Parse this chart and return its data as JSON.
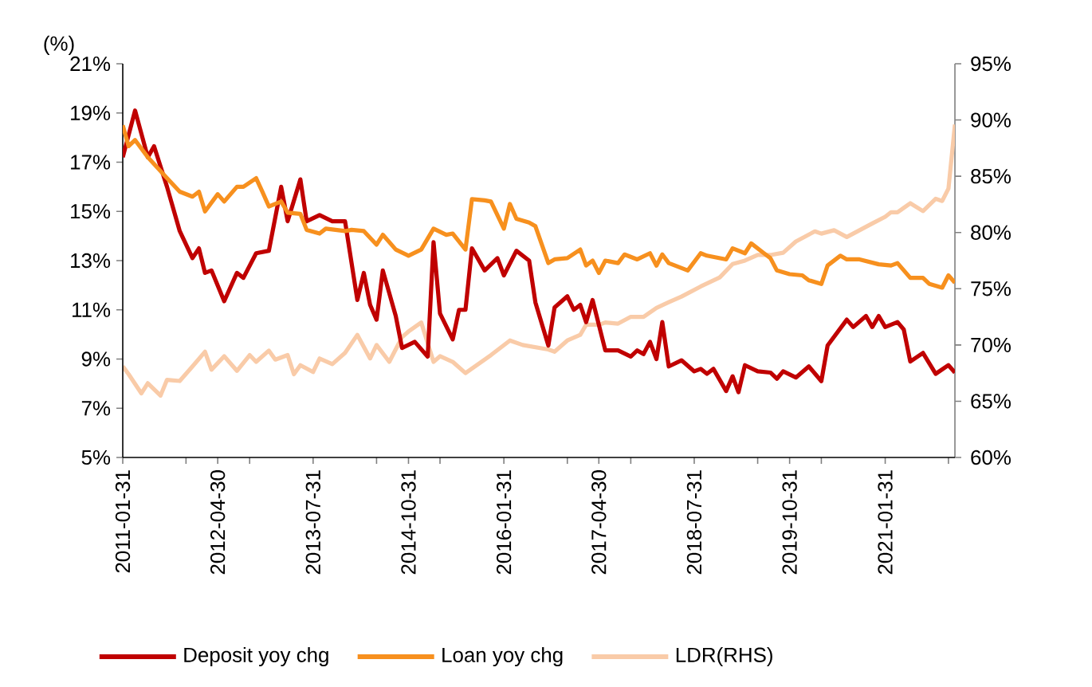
{
  "chart_data": {
    "type": "line",
    "ylabel": "(%)",
    "legend": "bottom",
    "line_style": "solid",
    "marker": "none",
    "grid": false,
    "xlim": [
      "2011-01-31",
      "2021-12-31"
    ],
    "xticks": [
      {
        "value": "2011-01-31",
        "label": "2011-01-31"
      },
      {
        "value": "2011-11-30",
        "label": null
      },
      {
        "value": "2012-04-30",
        "label": "2012-04-30"
      },
      {
        "value": "2012-09-30",
        "label": null
      },
      {
        "value": "2013-07-31",
        "label": "2013-07-31"
      },
      {
        "value": "2014-05-31",
        "label": null
      },
      {
        "value": "2014-10-31",
        "label": "2014-10-31"
      },
      {
        "value": "2015-03-31",
        "label": null
      },
      {
        "value": "2016-01-31",
        "label": "2016-01-31"
      },
      {
        "value": "2016-11-30",
        "label": null
      },
      {
        "value": "2017-04-30",
        "label": "2017-04-30"
      },
      {
        "value": "2017-09-30",
        "label": null
      },
      {
        "value": "2018-07-31",
        "label": "2018-07-31"
      },
      {
        "value": "2019-05-31",
        "label": null
      },
      {
        "value": "2019-10-31",
        "label": "2019-10-31"
      },
      {
        "value": "2020-03-31",
        "label": null
      },
      {
        "value": "2021-01-31",
        "label": "2021-01-31"
      },
      {
        "value": "2021-11-30",
        "label": null
      }
    ],
    "ylim": [
      5,
      21
    ],
    "yticks": [
      {
        "value": 5,
        "label": "5%"
      },
      {
        "value": 7,
        "label": "7%"
      },
      {
        "value": 9,
        "label": "9%"
      },
      {
        "value": 11,
        "label": "11%"
      },
      {
        "value": 13,
        "label": "13%"
      },
      {
        "value": 15,
        "label": "15%"
      },
      {
        "value": 17,
        "label": "17%"
      },
      {
        "value": 19,
        "label": "19%"
      },
      {
        "value": 21,
        "label": "21%"
      }
    ],
    "y2lim": [
      60,
      95
    ],
    "y2ticks": [
      {
        "value": 60,
        "label": "60%"
      },
      {
        "value": 65,
        "label": "65%"
      },
      {
        "value": 70,
        "label": "70%"
      },
      {
        "value": 75,
        "label": "75%"
      },
      {
        "value": 80,
        "label": "80%"
      },
      {
        "value": 85,
        "label": "85%"
      },
      {
        "value": 90,
        "label": "90%"
      },
      {
        "value": 95,
        "label": "95%"
      }
    ],
    "series": [
      {
        "name": "Deposit yoy chg",
        "color": "#c00000",
        "x": [
          "2011-01-31",
          "2011-03-31",
          "2011-05-31",
          "2011-06-30",
          "2011-08-31",
          "2011-10-31",
          "2011-12-31",
          "2012-01-31",
          "2012-02-29",
          "2012-03-31",
          "2012-05-31",
          "2012-07-31",
          "2012-08-31",
          "2012-10-31",
          "2012-12-31",
          "2013-02-28",
          "2013-03-31",
          "2013-05-31",
          "2013-06-30",
          "2013-08-31",
          "2013-10-31",
          "2013-12-31",
          "2014-02-28",
          "2014-03-31",
          "2014-04-30",
          "2014-05-31",
          "2014-06-30",
          "2014-08-31",
          "2014-09-30",
          "2014-11-30",
          "2015-01-31",
          "2015-02-28",
          "2015-03-31",
          "2015-05-31",
          "2015-06-30",
          "2015-07-31",
          "2015-08-31",
          "2015-10-31",
          "2015-12-31",
          "2016-01-31",
          "2016-03-31",
          "2016-05-31",
          "2016-06-30",
          "2016-08-31",
          "2016-09-30",
          "2016-11-30",
          "2016-12-31",
          "2017-01-31",
          "2017-02-28",
          "2017-03-31",
          "2017-05-31",
          "2017-07-31",
          "2017-09-30",
          "2017-10-31",
          "2017-11-30",
          "2017-12-31",
          "2018-01-31",
          "2018-02-28",
          "2018-03-31",
          "2018-05-31",
          "2018-07-31",
          "2018-08-31",
          "2018-09-30",
          "2018-10-31",
          "2018-12-31",
          "2019-01-31",
          "2019-02-28",
          "2019-03-31",
          "2019-05-31",
          "2019-07-31",
          "2019-08-31",
          "2019-09-30",
          "2019-11-30",
          "2020-01-31",
          "2020-03-31",
          "2020-04-30",
          "2020-07-31",
          "2020-08-31",
          "2020-10-31",
          "2020-11-30",
          "2020-12-31",
          "2021-01-31",
          "2021-03-31",
          "2021-04-30",
          "2021-05-31",
          "2021-07-31",
          "2021-09-30",
          "2021-11-30",
          "2021-12-31"
        ],
        "values": [
          17.2,
          19.1,
          17.2,
          17.65,
          16.0,
          14.2,
          13.1,
          13.5,
          12.5,
          12.6,
          11.35,
          12.5,
          12.3,
          13.3,
          13.4,
          16.0,
          14.6,
          16.3,
          14.6,
          14.85,
          14.6,
          14.6,
          11.4,
          12.5,
          11.2,
          10.6,
          12.6,
          10.75,
          9.45,
          9.7,
          9.1,
          13.75,
          10.85,
          9.8,
          11.0,
          11.0,
          13.5,
          12.6,
          13.1,
          12.4,
          13.4,
          13.0,
          11.3,
          9.55,
          11.1,
          11.55,
          11.0,
          11.2,
          10.5,
          11.4,
          9.35,
          9.35,
          9.1,
          9.35,
          9.2,
          9.7,
          9.0,
          10.5,
          8.7,
          8.95,
          8.5,
          8.6,
          8.4,
          8.6,
          7.7,
          8.3,
          7.65,
          8.75,
          8.5,
          8.45,
          8.2,
          8.5,
          8.25,
          8.7,
          8.1,
          9.55,
          10.6,
          10.3,
          10.75,
          10.3,
          10.75,
          10.3,
          10.5,
          10.2,
          8.9,
          9.25,
          8.4,
          8.75,
          8.45
        ]
      },
      {
        "name": "Loan yoy chg",
        "color": "#f7901e",
        "x": [
          "2011-01-31",
          "2011-02-28",
          "2011-03-31",
          "2011-05-31",
          "2011-08-31",
          "2011-10-31",
          "2011-12-31",
          "2012-01-31",
          "2012-02-29",
          "2012-04-30",
          "2012-05-31",
          "2012-07-31",
          "2012-08-31",
          "2012-10-31",
          "2012-11-30",
          "2012-12-31",
          "2013-02-28",
          "2013-03-31",
          "2013-05-31",
          "2013-06-30",
          "2013-08-31",
          "2013-09-30",
          "2013-12-31",
          "2014-01-31",
          "2014-03-31",
          "2014-05-31",
          "2014-06-30",
          "2014-08-31",
          "2014-10-31",
          "2014-12-31",
          "2015-02-28",
          "2015-04-30",
          "2015-05-31",
          "2015-07-31",
          "2015-08-31",
          "2015-10-31",
          "2015-11-30",
          "2016-01-31",
          "2016-02-29",
          "2016-03-31",
          "2016-05-31",
          "2016-06-30",
          "2016-08-31",
          "2016-09-30",
          "2016-11-30",
          "2017-01-31",
          "2017-02-28",
          "2017-03-31",
          "2017-04-30",
          "2017-05-31",
          "2017-07-31",
          "2017-08-31",
          "2017-10-31",
          "2017-12-31",
          "2018-01-31",
          "2018-02-28",
          "2018-03-31",
          "2018-06-30",
          "2018-08-31",
          "2018-09-30",
          "2018-12-31",
          "2019-01-31",
          "2019-03-31",
          "2019-04-30",
          "2019-06-30",
          "2019-07-31",
          "2019-08-31",
          "2019-10-31",
          "2019-12-31",
          "2020-01-31",
          "2020-03-31",
          "2020-04-30",
          "2020-06-30",
          "2020-07-31",
          "2020-09-30",
          "2020-12-31",
          "2021-02-28",
          "2021-03-31",
          "2021-05-31",
          "2021-07-31",
          "2021-08-31",
          "2021-10-31",
          "2021-11-30",
          "2021-12-31"
        ],
        "values": [
          18.5,
          17.65,
          17.9,
          17.2,
          16.35,
          15.8,
          15.6,
          15.8,
          15.0,
          15.7,
          15.4,
          16.0,
          16.0,
          16.35,
          15.8,
          15.2,
          15.4,
          14.95,
          14.9,
          14.25,
          14.1,
          14.3,
          14.2,
          14.25,
          14.2,
          13.65,
          14.05,
          13.45,
          13.2,
          13.45,
          14.3,
          14.05,
          14.1,
          13.45,
          15.5,
          15.45,
          15.4,
          14.3,
          15.3,
          14.7,
          14.55,
          14.4,
          12.9,
          13.05,
          13.1,
          13.45,
          12.8,
          13.0,
          12.5,
          13.0,
          12.9,
          13.25,
          13.05,
          13.3,
          12.8,
          13.25,
          12.9,
          12.6,
          13.3,
          13.2,
          13.05,
          13.5,
          13.3,
          13.7,
          13.3,
          13.1,
          12.6,
          12.45,
          12.4,
          12.2,
          12.05,
          12.8,
          13.2,
          13.05,
          13.05,
          12.85,
          12.8,
          12.9,
          12.3,
          12.3,
          12.05,
          11.9,
          12.4,
          12.1
        ]
      },
      {
        "name": "LDR(RHS)",
        "color": "#f9cba8",
        "axis": "y2",
        "x": [
          "2011-01-31",
          "2011-02-28",
          "2011-04-30",
          "2011-05-31",
          "2011-07-31",
          "2011-08-31",
          "2011-10-31",
          "2011-12-31",
          "2012-02-29",
          "2012-03-31",
          "2012-05-31",
          "2012-07-31",
          "2012-09-30",
          "2012-10-31",
          "2012-12-31",
          "2013-01-31",
          "2013-03-31",
          "2013-04-30",
          "2013-05-31",
          "2013-07-31",
          "2013-08-31",
          "2013-10-31",
          "2013-12-31",
          "2014-02-28",
          "2014-04-30",
          "2014-05-31",
          "2014-07-31",
          "2014-09-30",
          "2014-10-31",
          "2014-12-31",
          "2015-02-28",
          "2015-03-31",
          "2015-05-31",
          "2015-07-31",
          "2015-11-30",
          "2016-02-29",
          "2016-04-30",
          "2016-08-31",
          "2016-09-30",
          "2016-11-30",
          "2017-01-31",
          "2017-02-28",
          "2017-04-30",
          "2017-05-31",
          "2017-07-31",
          "2017-09-30",
          "2017-11-30",
          "2018-01-31",
          "2018-03-31",
          "2018-05-31",
          "2018-08-31",
          "2018-11-30",
          "2019-01-31",
          "2019-03-31",
          "2019-05-31",
          "2019-07-31",
          "2019-09-30",
          "2019-11-30",
          "2020-02-29",
          "2020-03-31",
          "2020-05-31",
          "2020-07-31",
          "2020-09-30",
          "2020-11-30",
          "2021-01-31",
          "2021-02-28",
          "2021-03-31",
          "2021-05-31",
          "2021-07-31",
          "2021-09-30",
          "2021-10-31",
          "2021-11-30",
          "2021-12-31"
        ],
        "values": [
          68.1,
          67.4,
          65.7,
          66.6,
          65.5,
          66.9,
          66.8,
          68.1,
          69.4,
          67.8,
          69.0,
          67.7,
          69.1,
          68.5,
          69.5,
          68.7,
          69.1,
          67.4,
          68.2,
          67.6,
          68.8,
          68.3,
          69.3,
          70.9,
          68.8,
          70.0,
          68.5,
          70.7,
          71.2,
          72.0,
          68.5,
          69.0,
          68.5,
          67.5,
          69.1,
          70.4,
          70.0,
          69.6,
          69.4,
          70.4,
          70.9,
          71.8,
          71.8,
          72.0,
          71.9,
          72.5,
          72.5,
          73.3,
          73.8,
          74.3,
          75.2,
          76.0,
          77.2,
          77.5,
          78.0,
          78.0,
          78.2,
          79.2,
          80.1,
          79.9,
          80.2,
          79.6,
          80.2,
          80.8,
          81.4,
          81.8,
          81.8,
          82.6,
          81.9,
          83.0,
          82.8,
          83.9,
          89.6
        ]
      }
    ]
  }
}
